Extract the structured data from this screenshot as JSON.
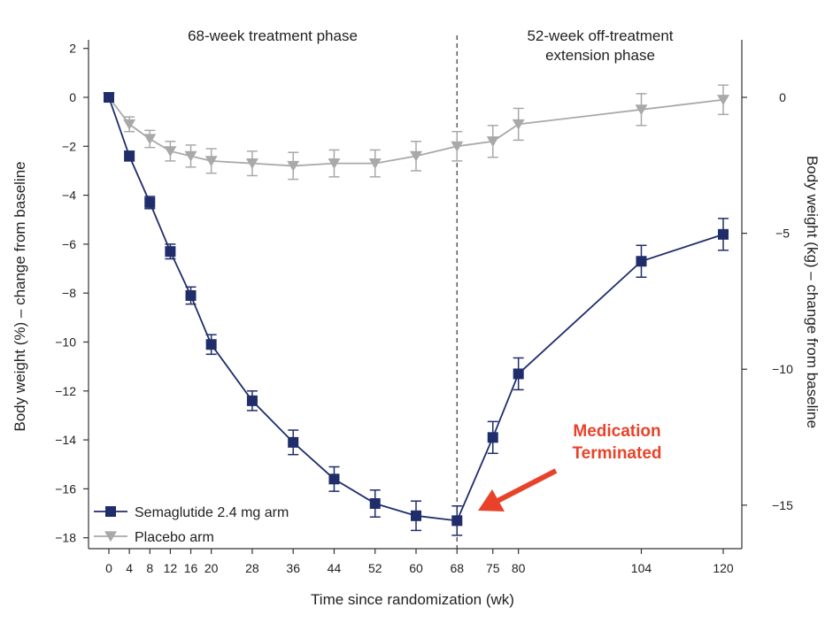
{
  "chart_data": {
    "type": "line",
    "xlabel": "Time since randomization (wk)",
    "ylabel_left": "Body weight (%) – change from baseline",
    "ylabel_right": "Body weight (kg) – change from baseline",
    "phase_labels": {
      "treatment": "68-week treatment phase",
      "extension_line1": "52-week off-treatment",
      "extension_line2": "extension phase"
    },
    "x": [
      0,
      4,
      8,
      12,
      16,
      20,
      28,
      36,
      44,
      52,
      60,
      68,
      75,
      80,
      104,
      120
    ],
    "x_tick_labels": [
      "0",
      "4",
      "8",
      "12",
      "16",
      "20",
      "28",
      "36",
      "44",
      "52",
      "60",
      "68",
      "75",
      "80",
      "104",
      "120"
    ],
    "ylim_left": [
      -18.5,
      2
    ],
    "y_ticks_left": [
      2,
      0,
      -2,
      -4,
      -6,
      -8,
      -10,
      -12,
      -14,
      -16,
      -18
    ],
    "y_tick_labels_left": [
      "2",
      "0",
      "−2",
      "−4",
      "−6",
      "−8",
      "−10",
      "−12",
      "−14",
      "−16",
      "−18"
    ],
    "y_ticks_right": [
      0,
      -5,
      -10,
      -15
    ],
    "y_tick_labels_right": [
      "0",
      "−5",
      "−10",
      "−15"
    ],
    "right_axis_kg_per_percent": 0.9,
    "treatment_end_week": 68,
    "series": [
      {
        "name": "Semaglutide 2.4 mg arm",
        "color": "#1f2d6b",
        "marker": "square",
        "x": [
          0,
          4,
          8,
          12,
          16,
          20,
          28,
          36,
          44,
          52,
          60,
          68,
          75,
          80,
          104,
          120
        ],
        "values": [
          0,
          -2.4,
          -4.3,
          -6.3,
          -8.1,
          -10.1,
          -12.4,
          -14.1,
          -15.6,
          -16.6,
          -17.1,
          -17.3,
          -13.9,
          -11.3,
          -6.7,
          -5.6
        ],
        "error": [
          0.1,
          0.2,
          0.25,
          0.3,
          0.35,
          0.4,
          0.4,
          0.5,
          0.5,
          0.55,
          0.6,
          0.6,
          0.65,
          0.65,
          0.65,
          0.65
        ]
      },
      {
        "name": "Placebo arm",
        "color": "#a9a9a9",
        "marker": "triangle-down",
        "x": [
          0,
          4,
          8,
          12,
          16,
          20,
          28,
          36,
          44,
          52,
          60,
          68,
          75,
          80,
          104,
          120
        ],
        "values": [
          0,
          -1.1,
          -1.7,
          -2.2,
          -2.4,
          -2.6,
          -2.7,
          -2.8,
          -2.7,
          -2.7,
          -2.4,
          -2.0,
          -1.8,
          -1.1,
          -0.5,
          -0.1
        ],
        "error": [
          0.1,
          0.3,
          0.35,
          0.4,
          0.45,
          0.5,
          0.5,
          0.55,
          0.55,
          0.55,
          0.6,
          0.6,
          0.65,
          0.65,
          0.65,
          0.6
        ]
      }
    ],
    "legend": {
      "position": "bottom-left"
    },
    "annotations": [
      {
        "text_line1": "Medication",
        "text_line2": "Terminated",
        "color": "#e8432a",
        "points_to_week": 68
      }
    ],
    "grid": false
  }
}
